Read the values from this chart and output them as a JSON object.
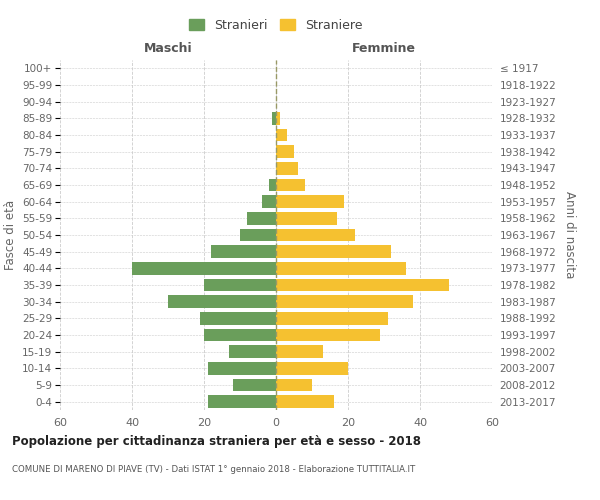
{
  "age_groups": [
    "0-4",
    "5-9",
    "10-14",
    "15-19",
    "20-24",
    "25-29",
    "30-34",
    "35-39",
    "40-44",
    "45-49",
    "50-54",
    "55-59",
    "60-64",
    "65-69",
    "70-74",
    "75-79",
    "80-84",
    "85-89",
    "90-94",
    "95-99",
    "100+"
  ],
  "birth_years": [
    "2013-2017",
    "2008-2012",
    "2003-2007",
    "1998-2002",
    "1993-1997",
    "1988-1992",
    "1983-1987",
    "1978-1982",
    "1973-1977",
    "1968-1972",
    "1963-1967",
    "1958-1962",
    "1953-1957",
    "1948-1952",
    "1943-1947",
    "1938-1942",
    "1933-1937",
    "1928-1932",
    "1923-1927",
    "1918-1922",
    "≤ 1917"
  ],
  "maschi": [
    19,
    12,
    19,
    13,
    20,
    21,
    30,
    20,
    40,
    18,
    10,
    8,
    4,
    2,
    0,
    0,
    0,
    1,
    0,
    0,
    0
  ],
  "femmine": [
    16,
    10,
    20,
    13,
    29,
    31,
    38,
    48,
    36,
    32,
    22,
    17,
    19,
    8,
    6,
    5,
    3,
    1,
    0,
    0,
    0
  ],
  "maschi_color": "#6a9e5b",
  "femmine_color": "#f5c130",
  "title": "Popolazione per cittadinanza straniera per età e sesso - 2018",
  "subtitle": "COMUNE DI MARENO DI PIAVE (TV) - Dati ISTAT 1° gennaio 2018 - Elaborazione TUTTITALIA.IT",
  "ylabel_left": "Fasce di età",
  "ylabel_right": "Anni di nascita",
  "xlabel_left": "Maschi",
  "xlabel_right": "Femmine",
  "legend_maschi": "Stranieri",
  "legend_femmine": "Straniere",
  "xlim": 60,
  "background_color": "#ffffff",
  "grid_color": "#cccccc"
}
